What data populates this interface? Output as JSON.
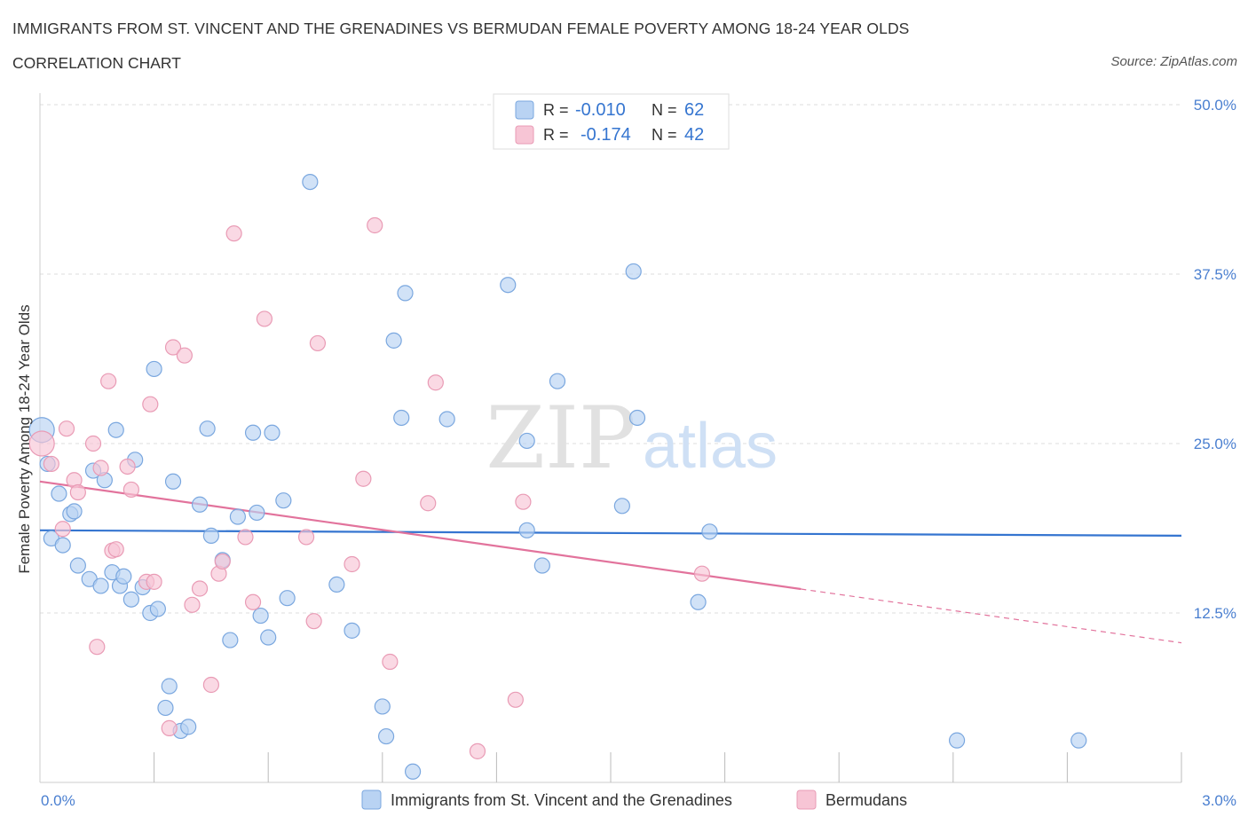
{
  "header": {
    "title": "IMMIGRANTS FROM ST. VINCENT AND THE GRENADINES VS BERMUDAN FEMALE POVERTY AMONG 18-24 YEAR OLDS",
    "subtitle": "CORRELATION CHART",
    "source": "Source: ZipAtlas.com"
  },
  "watermark": {
    "zip": "ZIP",
    "atlas": "atlas"
  },
  "colors": {
    "blue_fill": "#b9d3f3",
    "blue_stroke": "#7aa7df",
    "blue_line": "#3575d0",
    "pink_fill": "#f7c5d5",
    "pink_stroke": "#e99bb5",
    "pink_line": "#e2739c",
    "axis_text": "#4a7fd0",
    "grid": "#dddddd"
  },
  "legend": {
    "rows": [
      {
        "r_label": "R =",
        "r_value": "-0.010",
        "n_label": "N =",
        "n_value": "62"
      },
      {
        "r_label": "R =",
        "r_value": "-0.174",
        "n_label": "N =",
        "n_value": "42"
      }
    ]
  },
  "bottom_legend": [
    {
      "label": "Immigrants from St. Vincent and the Grenadines"
    },
    {
      "label": "Bermudans"
    }
  ],
  "chart_data": {
    "type": "scatter",
    "ylabel": "Female Poverty Among 18-24 Year Olds",
    "xlim": [
      0,
      3.0
    ],
    "ylim": [
      0,
      50
    ],
    "x_tick_labels": [
      "0.0%",
      "3.0%"
    ],
    "y_ticks": [
      12.5,
      25.0,
      37.5,
      50.0
    ],
    "y_tick_labels": [
      "12.5%",
      "25.0%",
      "37.5%",
      "50.0%"
    ],
    "grid": true,
    "legend_position": "top-center",
    "series": [
      {
        "name": "Immigrants from St. Vincent and the Grenadines",
        "trend": {
          "x": [
            0.0,
            3.0
          ],
          "y": [
            18.6,
            18.2
          ],
          "dashed_from": null
        },
        "points": [
          [
            0.005,
            26.0
          ],
          [
            0.02,
            23.5
          ],
          [
            0.03,
            18.0
          ],
          [
            0.05,
            21.3
          ],
          [
            0.06,
            17.5
          ],
          [
            0.08,
            19.8
          ],
          [
            0.09,
            20.0
          ],
          [
            0.1,
            16.0
          ],
          [
            0.13,
            15.0
          ],
          [
            0.14,
            23.0
          ],
          [
            0.16,
            14.5
          ],
          [
            0.17,
            22.3
          ],
          [
            0.19,
            15.5
          ],
          [
            0.2,
            26.0
          ],
          [
            0.21,
            14.5
          ],
          [
            0.22,
            15.2
          ],
          [
            0.24,
            13.5
          ],
          [
            0.25,
            23.8
          ],
          [
            0.27,
            14.4
          ],
          [
            0.29,
            12.5
          ],
          [
            0.3,
            30.5
          ],
          [
            0.31,
            12.8
          ],
          [
            0.33,
            5.5
          ],
          [
            0.34,
            7.1
          ],
          [
            0.35,
            22.2
          ],
          [
            0.37,
            3.8
          ],
          [
            0.39,
            4.1
          ],
          [
            0.42,
            20.5
          ],
          [
            0.44,
            26.1
          ],
          [
            0.45,
            18.2
          ],
          [
            0.48,
            16.4
          ],
          [
            0.5,
            10.5
          ],
          [
            0.52,
            19.6
          ],
          [
            0.56,
            25.8
          ],
          [
            0.57,
            19.9
          ],
          [
            0.58,
            12.3
          ],
          [
            0.6,
            10.7
          ],
          [
            0.61,
            25.8
          ],
          [
            0.64,
            20.8
          ],
          [
            0.65,
            13.6
          ],
          [
            0.71,
            44.3
          ],
          [
            0.78,
            14.6
          ],
          [
            0.82,
            11.2
          ],
          [
            0.9,
            5.6
          ],
          [
            0.91,
            3.4
          ],
          [
            0.93,
            32.6
          ],
          [
            0.95,
            26.9
          ],
          [
            0.96,
            36.1
          ],
          [
            0.98,
            0.8
          ],
          [
            1.07,
            26.8
          ],
          [
            1.23,
            36.7
          ],
          [
            1.28,
            25.2
          ],
          [
            1.28,
            18.6
          ],
          [
            1.32,
            16.0
          ],
          [
            1.36,
            29.6
          ],
          [
            1.53,
            20.4
          ],
          [
            1.57,
            26.9
          ],
          [
            1.56,
            37.7
          ],
          [
            1.73,
            13.3
          ],
          [
            1.76,
            18.5
          ],
          [
            2.41,
            3.1
          ],
          [
            2.73,
            3.1
          ]
        ]
      },
      {
        "name": "Bermudans",
        "trend": {
          "x": [
            0.0,
            3.0
          ],
          "y": [
            22.2,
            10.3
          ],
          "dashed_from": 2.0
        },
        "points": [
          [
            0.005,
            25.0
          ],
          [
            0.03,
            23.5
          ],
          [
            0.06,
            18.7
          ],
          [
            0.07,
            26.1
          ],
          [
            0.09,
            22.3
          ],
          [
            0.1,
            21.4
          ],
          [
            0.14,
            25.0
          ],
          [
            0.15,
            10.0
          ],
          [
            0.16,
            23.2
          ],
          [
            0.18,
            29.6
          ],
          [
            0.19,
            17.1
          ],
          [
            0.2,
            17.2
          ],
          [
            0.23,
            23.3
          ],
          [
            0.24,
            21.6
          ],
          [
            0.28,
            14.8
          ],
          [
            0.29,
            27.9
          ],
          [
            0.3,
            14.8
          ],
          [
            0.34,
            4.0
          ],
          [
            0.35,
            32.1
          ],
          [
            0.38,
            31.5
          ],
          [
            0.4,
            13.1
          ],
          [
            0.42,
            14.3
          ],
          [
            0.45,
            7.2
          ],
          [
            0.47,
            15.4
          ],
          [
            0.48,
            16.3
          ],
          [
            0.51,
            40.5
          ],
          [
            0.54,
            18.1
          ],
          [
            0.56,
            13.3
          ],
          [
            0.59,
            34.2
          ],
          [
            0.7,
            18.1
          ],
          [
            0.72,
            11.9
          ],
          [
            0.73,
            32.4
          ],
          [
            0.82,
            16.1
          ],
          [
            0.85,
            22.4
          ],
          [
            0.88,
            41.1
          ],
          [
            0.92,
            8.9
          ],
          [
            1.02,
            20.6
          ],
          [
            1.04,
            29.5
          ],
          [
            1.15,
            2.3
          ],
          [
            1.25,
            6.1
          ],
          [
            1.27,
            20.7
          ],
          [
            1.74,
            15.4
          ]
        ]
      }
    ]
  }
}
